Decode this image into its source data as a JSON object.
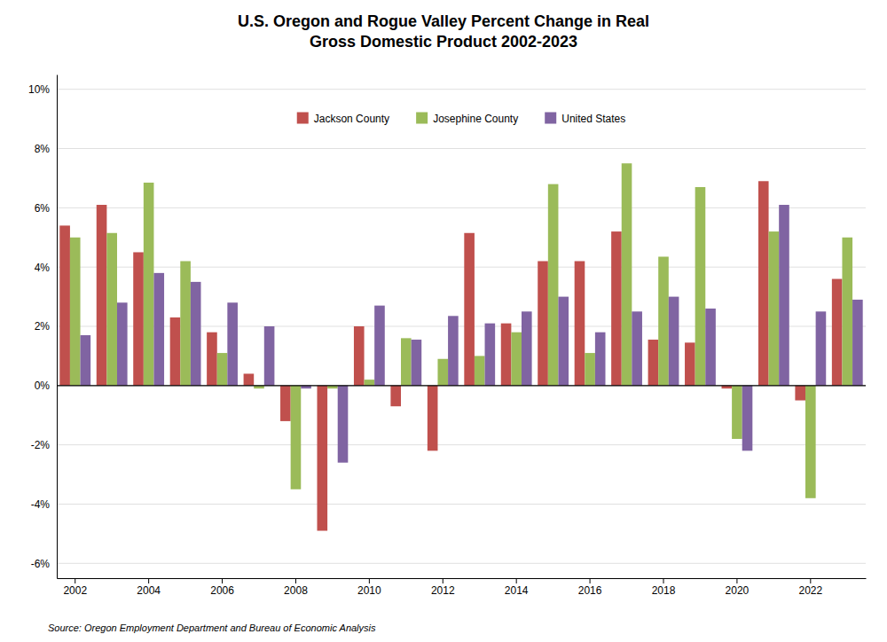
{
  "chart_data": {
    "type": "bar",
    "title": "U.S. Oregon and Rogue Valley Percent Change in Real\nGross Domestic Product 2002-2023",
    "source": "Source: Oregon Employment Department and Bureau of Economic Analysis",
    "categories": [
      "2002",
      null,
      "2004",
      null,
      "2006",
      null,
      "2008",
      null,
      "2010",
      null,
      "2012",
      null,
      "2014",
      null,
      "2016",
      null,
      "2018",
      null,
      "2020",
      null,
      "2022",
      null
    ],
    "series": [
      {
        "name": "Jackson County",
        "color": "#C0504D",
        "values": [
          5.4,
          6.1,
          4.5,
          2.3,
          1.8,
          0.4,
          -1.2,
          -4.9,
          2.0,
          -0.7,
          -2.2,
          5.15,
          2.1,
          4.2,
          4.2,
          5.2,
          1.55,
          1.45,
          -0.1,
          6.9,
          -0.5,
          3.6
        ]
      },
      {
        "name": "Josephine County",
        "color": "#9BBB59",
        "values": [
          5.0,
          5.15,
          6.85,
          4.2,
          1.1,
          -0.1,
          -3.5,
          -0.1,
          0.2,
          1.6,
          0.9,
          1.0,
          1.8,
          6.8,
          1.1,
          7.5,
          4.35,
          6.7,
          -1.8,
          5.2,
          -3.8,
          5.0
        ]
      },
      {
        "name": "United States",
        "color": "#8064A2",
        "values": [
          1.7,
          2.8,
          3.8,
          3.5,
          2.8,
          2.0,
          -0.1,
          -2.6,
          2.7,
          1.55,
          2.35,
          2.1,
          2.5,
          3.0,
          1.8,
          2.5,
          3.0,
          2.6,
          -2.2,
          6.1,
          2.5,
          2.9
        ]
      }
    ],
    "ylim": [
      -6.5,
      10.5
    ],
    "yticks": [
      {
        "value": -6,
        "label": "-6%"
      },
      {
        "value": -4,
        "label": "-4%"
      },
      {
        "value": -2,
        "label": "-2%"
      },
      {
        "value": 0,
        "label": "0%"
      },
      {
        "value": 2,
        "label": "2%"
      },
      {
        "value": 4,
        "label": "4%"
      },
      {
        "value": 6,
        "label": "6%"
      },
      {
        "value": 8,
        "label": "8%"
      },
      {
        "value": 10,
        "label": "10%"
      }
    ],
    "grid": true,
    "legend": "top"
  }
}
